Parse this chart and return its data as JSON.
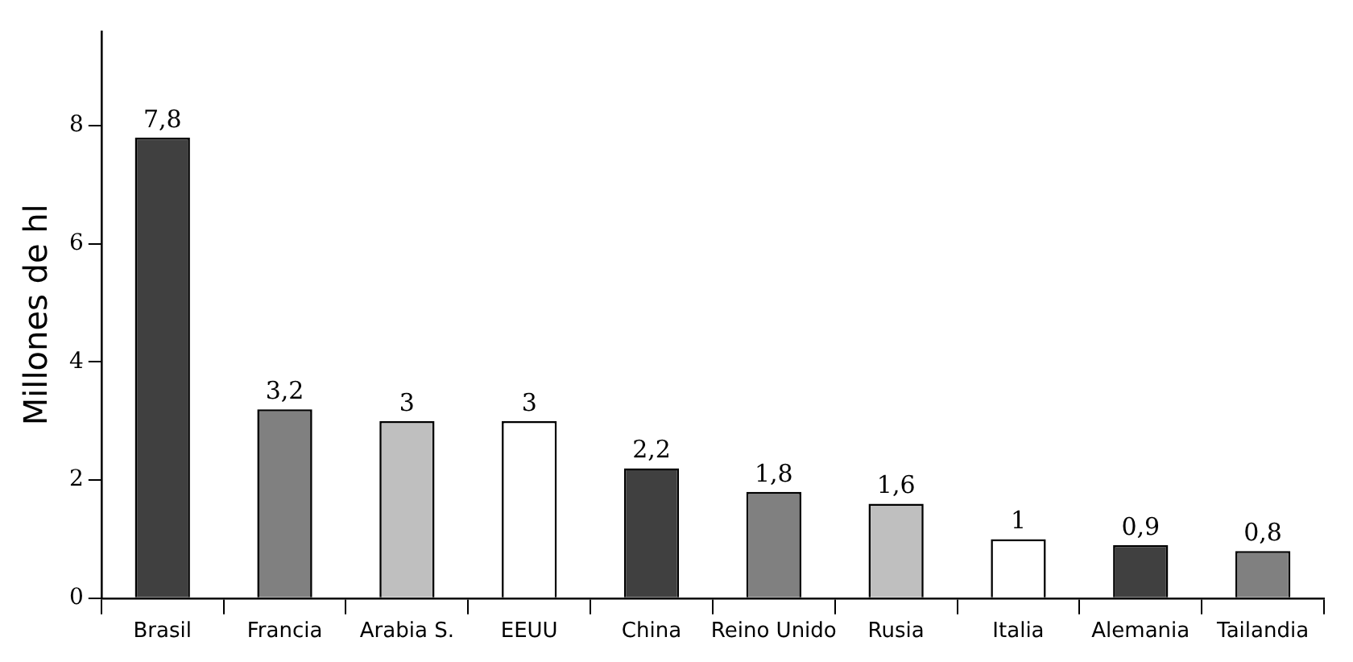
{
  "chart_data": {
    "type": "bar",
    "ylabel": "Millones de hl",
    "categories": [
      "Brasil",
      "Francia",
      "Arabia S.",
      "EEUU",
      "China",
      "Reino Unido",
      "Rusia",
      "Italia",
      "Alemania",
      "Tailandia"
    ],
    "values": [
      7.8,
      3.2,
      3,
      3,
      2.2,
      1.8,
      1.6,
      1,
      0.9,
      0.8
    ],
    "value_labels": [
      "7,8",
      "3,2",
      "3",
      "3",
      "2,2",
      "1,8",
      "1,6",
      "1",
      "0,9",
      "0,8"
    ],
    "colors": [
      "#404040",
      "#808080",
      "#bfbfbf",
      "#ffffff",
      "#404040",
      "#808080",
      "#bfbfbf",
      "#ffffff",
      "#404040",
      "#808080"
    ],
    "ylim": [
      0,
      9.6
    ],
    "yticks": [
      0,
      2,
      4,
      6,
      8
    ],
    "grid": false,
    "legend": false
  }
}
